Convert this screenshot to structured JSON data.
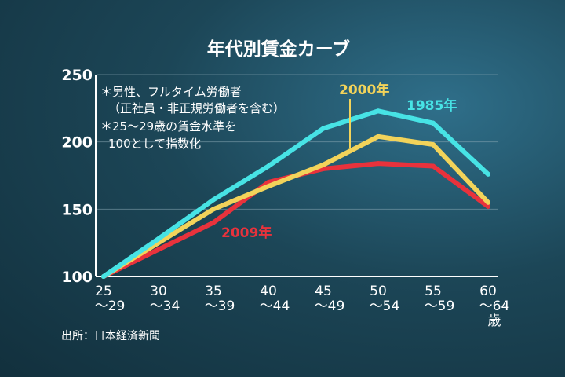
{
  "chart_data": {
    "type": "line",
    "title": "年代別賃金カーブ",
    "categories": [
      "25\n〜29",
      "30\n〜34",
      "35\n〜39",
      "40\n〜44",
      "45\n〜49",
      "50\n〜54",
      "55\n〜59",
      "60\n〜64\n歳"
    ],
    "ylim": [
      100,
      250
    ],
    "yticks": [
      100,
      150,
      200,
      250
    ],
    "grid": true,
    "series": [
      {
        "name": "2009年",
        "color": "#e8323c",
        "values": [
          100,
          120,
          140,
          170,
          180,
          184,
          182,
          152
        ]
      },
      {
        "name": "2000年",
        "color": "#f2d35a",
        "values": [
          100,
          125,
          150,
          167,
          183,
          204,
          198,
          155
        ]
      },
      {
        "name": "1985年",
        "color": "#47e3e5",
        "values": [
          100,
          128,
          157,
          182,
          210,
          223,
          214,
          176
        ]
      }
    ],
    "notes": [
      "＊男性、フルタイム労働者",
      "（正社員・非正規労働者を含む）",
      "＊25〜29歳の賃金水準を",
      "100として指数化"
    ],
    "source": "出所：日本経済新聞"
  }
}
